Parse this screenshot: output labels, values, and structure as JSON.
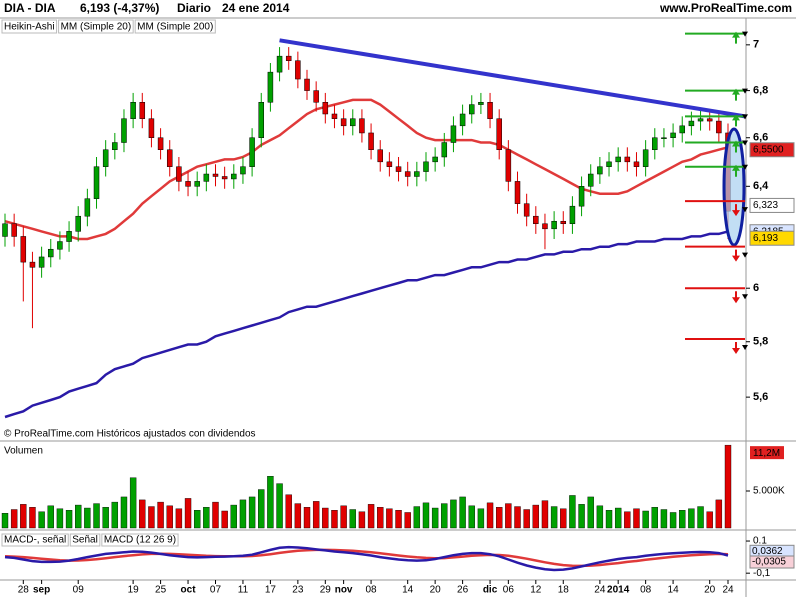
{
  "header": {
    "symbol": "DIA - DIA",
    "quote": "6,193 (-4,37%)",
    "period": "Diario",
    "date": "24 ene 2014",
    "site": "www.ProRealTime.com"
  },
  "footer": "© ProRealTime.com Históricos ajustados con dividendos",
  "chart_data": [
    {
      "type": "candlestick",
      "log_scale": true,
      "ylim": [
        5.45,
        7.12
      ],
      "yticks": [
        7,
        {
          "value": 6.8,
          "label": "6,8"
        },
        {
          "value": 6.6,
          "label": "6,6"
        },
        {
          "value": 6.4,
          "label": "6,4"
        },
        6,
        {
          "value": 5.8,
          "label": "5,8"
        },
        {
          "value": 5.6,
          "label": "5,6"
        }
      ],
      "categories": [
        null,
        null,
        "28",
        null,
        "sep",
        null,
        null,
        null,
        "09",
        null,
        null,
        null,
        null,
        null,
        "19",
        null,
        null,
        "25",
        null,
        null,
        "oct",
        null,
        null,
        "07",
        null,
        null,
        "11",
        null,
        null,
        "17",
        null,
        null,
        "23",
        null,
        null,
        "29",
        null,
        "nov",
        null,
        null,
        "08",
        null,
        null,
        null,
        "14",
        null,
        null,
        "20",
        null,
        null,
        "26",
        null,
        null,
        "dic",
        null,
        "06",
        null,
        null,
        "12",
        null,
        null,
        "18",
        null,
        null,
        null,
        "24",
        null,
        "2014",
        null,
        null,
        "08",
        null,
        null,
        "14",
        null,
        null,
        null,
        "20",
        null,
        "24"
      ],
      "series": [
        {
          "name": "Heikin-Ashi",
          "color": "#00a000",
          "down_color": "#e00000",
          "open": [
            6.2,
            6.25,
            6.2,
            6.1,
            6.08,
            6.12,
            6.15,
            6.18,
            6.22,
            6.28,
            6.35,
            6.48,
            6.55,
            6.58,
            6.68,
            6.75,
            6.68,
            6.6,
            6.55,
            6.48,
            6.42,
            6.4,
            6.42,
            6.45,
            6.44,
            6.43,
            6.45,
            6.48,
            6.6,
            6.75,
            6.88,
            6.95,
            6.93,
            6.85,
            6.8,
            6.75,
            6.7,
            6.68,
            6.65,
            6.68,
            6.62,
            6.55,
            6.5,
            6.48,
            6.46,
            6.44,
            6.46,
            6.5,
            6.52,
            6.58,
            6.65,
            6.7,
            6.74,
            6.75,
            6.68,
            6.55,
            6.42,
            6.33,
            6.28,
            6.25,
            6.23,
            6.26,
            6.25,
            6.32,
            6.4,
            6.45,
            6.48,
            6.5,
            6.52,
            6.5,
            6.48,
            6.55,
            6.6,
            6.6,
            6.62,
            6.65,
            6.67,
            6.68,
            6.67,
            6.62
          ],
          "high": [
            6.29,
            6.29,
            6.24,
            6.14,
            6.16,
            6.19,
            6.22,
            6.26,
            6.32,
            6.39,
            6.52,
            6.59,
            6.62,
            6.72,
            6.79,
            6.79,
            6.72,
            6.64,
            6.59,
            6.52,
            6.46,
            6.46,
            6.49,
            6.49,
            6.48,
            6.49,
            6.52,
            6.64,
            6.79,
            6.92,
            6.99,
            6.99,
            6.97,
            6.89,
            6.84,
            6.79,
            6.74,
            6.72,
            6.72,
            6.72,
            6.66,
            6.59,
            6.54,
            6.52,
            6.5,
            6.5,
            6.54,
            6.56,
            6.62,
            6.69,
            6.74,
            6.78,
            6.79,
            6.79,
            6.72,
            6.59,
            6.46,
            6.37,
            6.32,
            6.29,
            6.3,
            6.3,
            6.36,
            6.44,
            6.49,
            6.52,
            6.54,
            6.56,
            6.56,
            6.54,
            6.59,
            6.64,
            6.64,
            6.66,
            6.69,
            6.71,
            6.72,
            6.72,
            6.71,
            6.66
          ],
          "low": [
            6.16,
            6.16,
            5.95,
            5.85,
            6.04,
            6.08,
            6.11,
            6.14,
            6.18,
            6.24,
            6.31,
            6.44,
            6.51,
            6.54,
            6.64,
            6.64,
            6.56,
            6.51,
            6.44,
            6.38,
            6.36,
            6.36,
            6.38,
            6.4,
            6.39,
            6.39,
            6.41,
            6.44,
            6.56,
            6.71,
            6.84,
            6.89,
            6.81,
            6.76,
            6.71,
            6.66,
            6.64,
            6.61,
            6.61,
            6.58,
            6.51,
            6.46,
            6.44,
            6.42,
            6.4,
            6.4,
            6.42,
            6.46,
            6.48,
            6.54,
            6.61,
            6.66,
            6.7,
            6.64,
            6.51,
            6.38,
            6.29,
            6.24,
            6.21,
            6.15,
            6.19,
            6.21,
            6.21,
            6.28,
            6.36,
            6.41,
            6.44,
            6.46,
            6.46,
            6.44,
            6.44,
            6.51,
            6.56,
            6.56,
            6.58,
            6.61,
            6.63,
            6.63,
            6.58,
            6.19
          ],
          "close": [
            6.25,
            6.2,
            6.1,
            6.08,
            6.12,
            6.15,
            6.18,
            6.22,
            6.28,
            6.35,
            6.48,
            6.55,
            6.58,
            6.68,
            6.75,
            6.68,
            6.6,
            6.55,
            6.48,
            6.42,
            6.4,
            6.42,
            6.45,
            6.44,
            6.43,
            6.45,
            6.48,
            6.6,
            6.75,
            6.88,
            6.95,
            6.93,
            6.85,
            6.8,
            6.75,
            6.7,
            6.68,
            6.65,
            6.68,
            6.62,
            6.55,
            6.5,
            6.48,
            6.46,
            6.44,
            6.46,
            6.5,
            6.52,
            6.58,
            6.65,
            6.7,
            6.74,
            6.75,
            6.68,
            6.55,
            6.42,
            6.33,
            6.28,
            6.25,
            6.23,
            6.26,
            6.25,
            6.32,
            6.4,
            6.45,
            6.48,
            6.5,
            6.52,
            6.5,
            6.48,
            6.55,
            6.6,
            6.6,
            6.62,
            6.65,
            6.67,
            6.68,
            6.67,
            6.62,
            6.3
          ]
        },
        {
          "name": "MM (Simple 20)",
          "color": "#e03a3a",
          "values": [
            6.26,
            6.25,
            6.24,
            6.23,
            6.22,
            6.21,
            6.2,
            6.2,
            6.19,
            6.19,
            6.2,
            6.21,
            6.23,
            6.26,
            6.29,
            6.33,
            6.36,
            6.39,
            6.42,
            6.44,
            6.46,
            6.48,
            6.49,
            6.5,
            6.51,
            6.51,
            6.52,
            6.54,
            6.57,
            6.59,
            6.61,
            6.64,
            6.67,
            6.7,
            6.72,
            6.73,
            6.74,
            6.75,
            6.76,
            6.76,
            6.76,
            6.74,
            6.71,
            6.68,
            6.65,
            6.62,
            6.6,
            6.59,
            6.59,
            6.59,
            6.59,
            6.59,
            6.58,
            6.58,
            6.57,
            6.55,
            6.53,
            6.51,
            6.49,
            6.47,
            6.45,
            6.43,
            6.41,
            6.39,
            6.38,
            6.37,
            6.37,
            6.37,
            6.38,
            6.4,
            6.42,
            6.44,
            6.46,
            6.48,
            6.5,
            6.51,
            6.53,
            6.54,
            6.55,
            6.56
          ]
        },
        {
          "name": "MM (Simple 200)",
          "color": "#2a1aa8",
          "values": [
            5.53,
            5.54,
            5.55,
            5.57,
            5.58,
            5.59,
            5.6,
            5.62,
            5.63,
            5.64,
            5.65,
            5.68,
            5.7,
            5.71,
            5.72,
            5.74,
            5.75,
            5.76,
            5.77,
            5.78,
            5.79,
            5.79,
            5.8,
            5.82,
            5.83,
            5.84,
            5.85,
            5.86,
            5.87,
            5.88,
            5.89,
            5.91,
            5.92,
            5.93,
            5.93,
            5.94,
            5.95,
            5.96,
            5.97,
            5.98,
            5.99,
            6.0,
            6.01,
            6.02,
            6.03,
            6.03,
            6.04,
            6.05,
            6.05,
            6.06,
            6.07,
            6.08,
            6.08,
            6.09,
            6.1,
            6.1,
            6.11,
            6.11,
            6.12,
            6.13,
            6.13,
            6.14,
            6.14,
            6.15,
            6.15,
            6.16,
            6.16,
            6.17,
            6.17,
            6.18,
            6.18,
            6.18,
            6.19,
            6.19,
            6.19,
            6.2,
            6.2,
            6.21,
            6.21,
            6.22
          ]
        }
      ],
      "trendline": {
        "start": 7.02,
        "end": 6.69,
        "color": "#3333cc"
      },
      "levels": {
        "up": [
          7.05,
          6.8,
          6.69,
          6.58,
          6.48
        ],
        "up_color": "#22aa22",
        "down": [
          6.34,
          6.16,
          6.0,
          5.81
        ],
        "down_color": "#e01010"
      },
      "price_labels": [
        {
          "value": 6.55,
          "label": "6,5500",
          "color": "#e02020"
        },
        {
          "value": 6.323,
          "label": "6,323",
          "color": "#ffffff"
        },
        {
          "value": 6.2185,
          "label": "6,2185",
          "color": "#d8e4ff"
        },
        {
          "value": 6.193,
          "label": "6,193",
          "color": "#ffd800"
        }
      ]
    },
    {
      "type": "bar",
      "title": "Volumen",
      "ylim": [
        0,
        11490
      ],
      "yticks": [
        {
          "value": 5000,
          "label": "5.000K"
        }
      ],
      "values": [
        2000,
        2500,
        3200,
        2800,
        2200,
        3000,
        2600,
        2400,
        3100,
        2700,
        3300,
        2800,
        3500,
        4200,
        6800,
        3800,
        2900,
        3500,
        3000,
        2600,
        4000,
        2400,
        2800,
        3500,
        2300,
        3100,
        3800,
        4200,
        5200,
        7000,
        6000,
        4500,
        3300,
        2800,
        3600,
        2700,
        2400,
        3000,
        2500,
        2200,
        3200,
        2800,
        2600,
        2400,
        2100,
        2900,
        3400,
        2700,
        3300,
        3800,
        4200,
        3000,
        2600,
        3400,
        2800,
        3300,
        2900,
        2500,
        3100,
        3700,
        2900,
        2600,
        4400,
        3200,
        4200,
        3000,
        2400,
        2700,
        2200,
        2600,
        2300,
        2800,
        2500,
        2100,
        2400,
        2600,
        2900,
        2200,
        3800,
        11200
      ],
      "last_label": {
        "value": 11200,
        "label": "11,2M"
      }
    },
    {
      "type": "line",
      "ylim": [
        -0.13,
        0.15
      ],
      "yticks": [
        {
          "value": 0.1,
          "label": "0.1"
        },
        {
          "value": -0.1,
          "label": "-0,1"
        }
      ],
      "legend_extra": "MACD-, señal",
      "series": [
        {
          "name": "Señal",
          "color": "#e03a3a",
          "values": [
            0.005,
            0.003,
            0.0,
            -0.005,
            -0.01,
            -0.015,
            -0.02,
            -0.022,
            -0.021,
            -0.018,
            -0.013,
            -0.007,
            0.0,
            0.006,
            0.012,
            0.017,
            0.02,
            0.021,
            0.02,
            0.018,
            0.015,
            0.011,
            0.008,
            0.006,
            0.005,
            0.005,
            0.005,
            0.007,
            0.011,
            0.018,
            0.026,
            0.033,
            0.039,
            0.043,
            0.045,
            0.045,
            0.044,
            0.042,
            0.039,
            0.035,
            0.03,
            0.024,
            0.017,
            0.01,
            0.004,
            -0.001,
            -0.005,
            -0.007,
            -0.006,
            -0.002,
            0.003,
            0.008,
            0.012,
            0.014,
            0.013,
            0.008,
            0.0,
            -0.01,
            -0.021,
            -0.032,
            -0.042,
            -0.05,
            -0.054,
            -0.055,
            -0.053,
            -0.049,
            -0.043,
            -0.037,
            -0.03,
            -0.024,
            -0.017,
            -0.01,
            -0.004,
            0.002,
            0.007,
            0.011,
            0.015,
            0.018,
            0.02,
            0.018
          ]
        },
        {
          "name": "MACD (12 26 9)",
          "color": "#2a1aa8",
          "values": [
            0.0,
            -0.005,
            -0.015,
            -0.025,
            -0.03,
            -0.03,
            -0.028,
            -0.022,
            -0.012,
            0.0,
            0.01,
            0.02,
            0.025,
            0.03,
            0.035,
            0.033,
            0.028,
            0.02,
            0.012,
            0.005,
            0.0,
            -0.002,
            0.0,
            0.002,
            0.003,
            0.005,
            0.008,
            0.015,
            0.03,
            0.045,
            0.058,
            0.062,
            0.06,
            0.055,
            0.048,
            0.042,
            0.035,
            0.03,
            0.025,
            0.018,
            0.01,
            0.0,
            -0.008,
            -0.015,
            -0.02,
            -0.022,
            -0.02,
            -0.012,
            0.0,
            0.012,
            0.02,
            0.025,
            0.025,
            0.018,
            0.005,
            -0.015,
            -0.035,
            -0.052,
            -0.065,
            -0.075,
            -0.08,
            -0.078,
            -0.07,
            -0.058,
            -0.045,
            -0.032,
            -0.022,
            -0.012,
            -0.005,
            0.0,
            0.008,
            0.015,
            0.02,
            0.024,
            0.027,
            0.03,
            0.032,
            0.03,
            0.025,
            0.01
          ]
        }
      ],
      "value_labels": [
        {
          "value": 0.0362,
          "label": "0,0362"
        },
        {
          "value": -0.0305,
          "label": "-0,0305"
        }
      ]
    }
  ]
}
